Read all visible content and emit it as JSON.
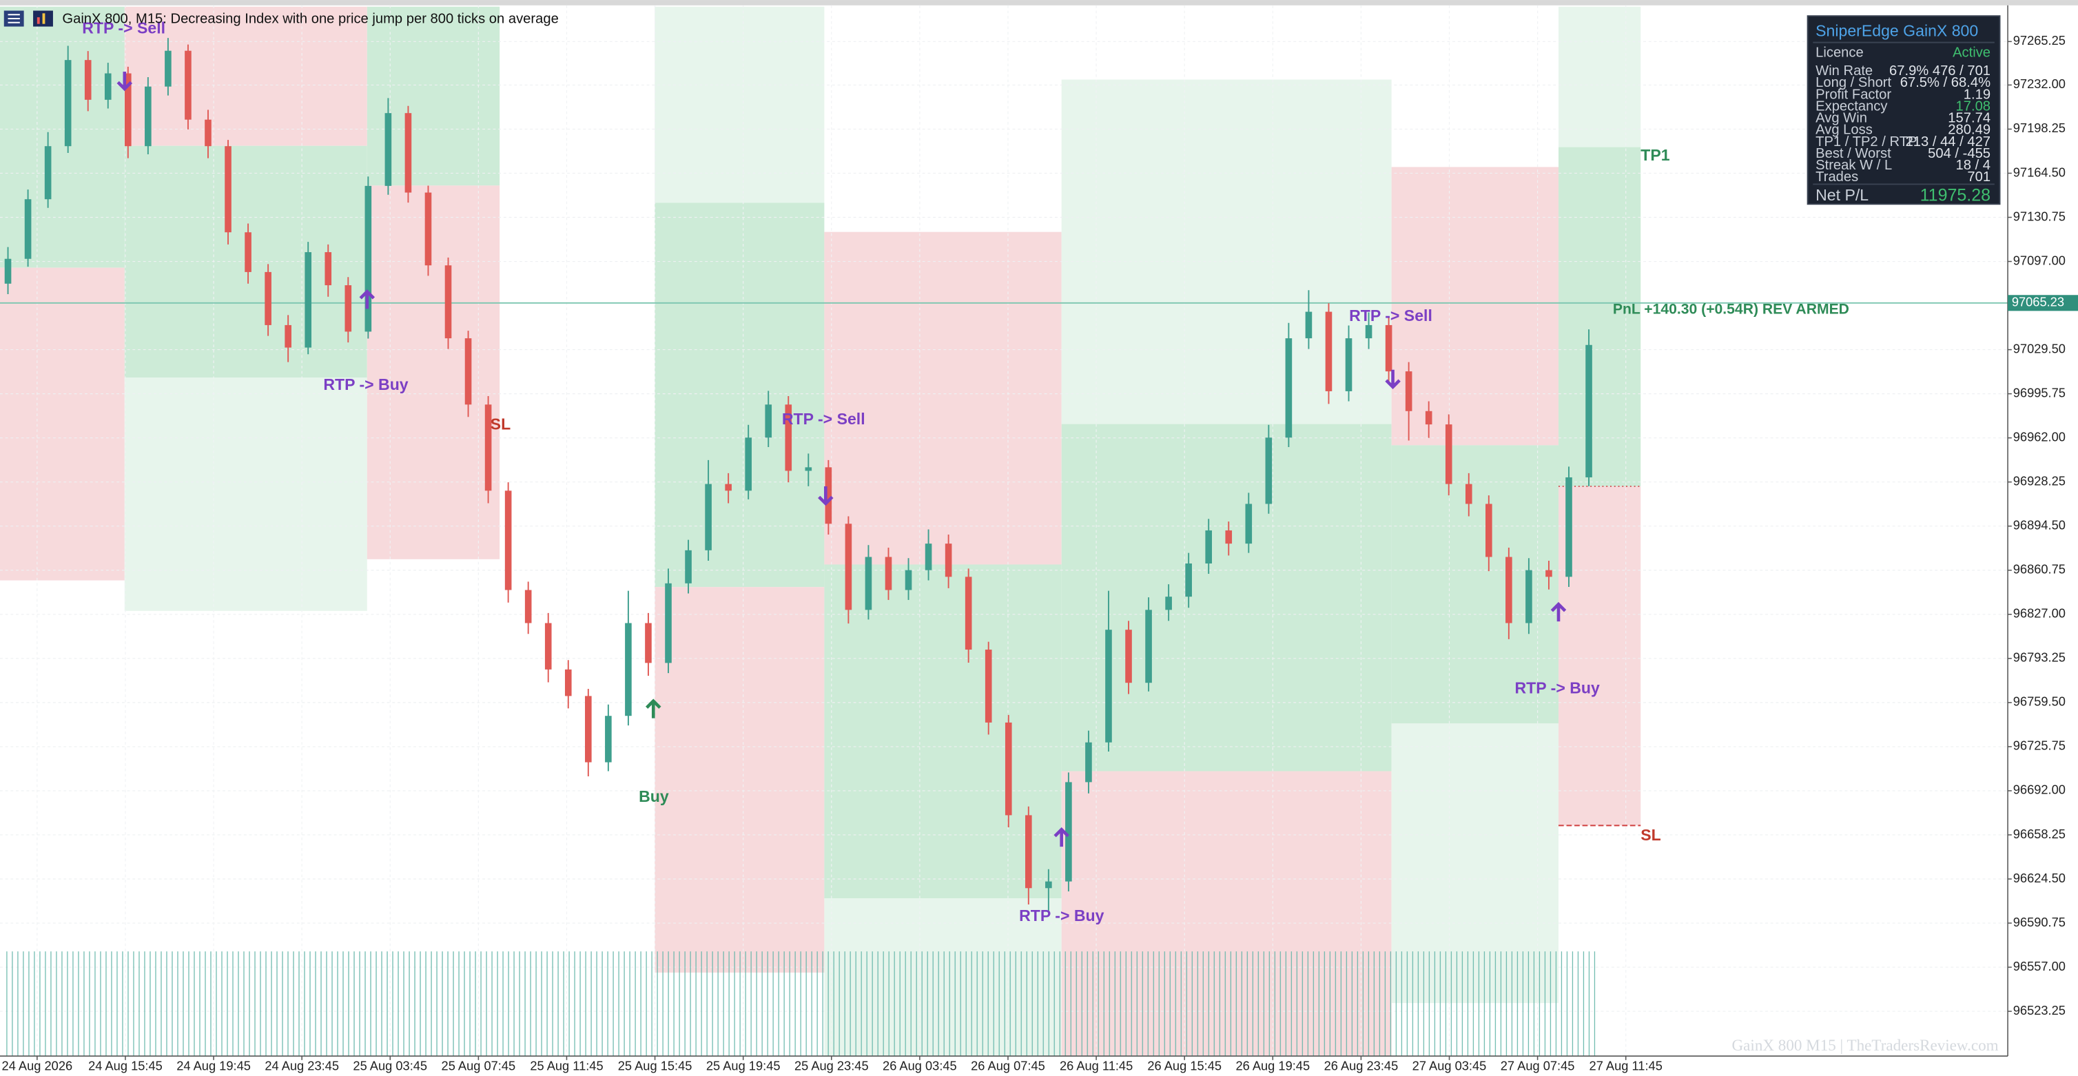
{
  "chart_data": {
    "type": "candlestick",
    "title": "GainX 800, M15:  Decreasing Index with one price jump per 800 ticks on average",
    "up_color": "#3e9f8e",
    "down_color": "#e05a55",
    "ylim": [
      96489,
      97297
    ],
    "yticks": [
      {
        "value": 97265.25,
        "label": "97265.25"
      },
      {
        "value": 97232,
        "label": "97232.00"
      },
      {
        "value": 97198.25,
        "label": "97198.25"
      },
      {
        "value": 97164.5,
        "label": "97164.50"
      },
      {
        "value": 97130.75,
        "label": "97130.75"
      },
      {
        "value": 97097,
        "label": "97097.00"
      },
      {
        "value": 97029.5,
        "label": "97029.50"
      },
      {
        "value": 96995.75,
        "label": "96995.75"
      },
      {
        "value": 96962,
        "label": "96962.00"
      },
      {
        "value": 96928.25,
        "label": "96928.25"
      },
      {
        "value": 96894.5,
        "label": "96894.50"
      },
      {
        "value": 96860.75,
        "label": "96860.75"
      },
      {
        "value": 96827,
        "label": "96827.00"
      },
      {
        "value": 96793.25,
        "label": "96793.25"
      },
      {
        "value": 96759.5,
        "label": "96759.50"
      },
      {
        "value": 96725.75,
        "label": "96725.75"
      },
      {
        "value": 96692,
        "label": "96692.00"
      },
      {
        "value": 96658.25,
        "label": "96658.25"
      },
      {
        "value": 96624.5,
        "label": "96624.50"
      },
      {
        "value": 96590.75,
        "label": "96590.75"
      },
      {
        "value": 96557,
        "label": "96557.00"
      },
      {
        "value": 96523.25,
        "label": "96523.25"
      }
    ],
    "grid": true,
    "time_labels": [
      "24 Aug 2026",
      "24 Aug 15:45",
      "24 Aug 19:45",
      "24 Aug 23:45",
      "25 Aug 03:45",
      "25 Aug 07:45",
      "25 Aug 11:45",
      "25 Aug 15:45",
      "25 Aug 19:45",
      "25 Aug 23:45",
      "26 Aug 03:45",
      "26 Aug 07:45",
      "26 Aug 11:45",
      "26 Aug 15:45",
      "26 Aug 19:45",
      "26 Aug 23:45",
      "27 Aug 03:45",
      "27 Aug 07:45",
      "27 Aug 11:45"
    ],
    "open": [
      97080,
      97099,
      97144.6,
      97185.2,
      97251.1,
      97220.7,
      97240.9,
      97185.2,
      97230.8,
      97258.2,
      97205.5,
      97185.2,
      97119.3,
      97088.9,
      97048.3,
      97031.1,
      97104.1,
      97078.8,
      97043.3,
      97154.8,
      97210.5,
      97149.7,
      97094,
      97038.2,
      96987.5,
      96921.6,
      96845.6,
      96820.3,
      96784.8,
      96764.5,
      96713.8,
      96749.3,
      96820.3,
      96789.8,
      96850.7,
      96876,
      96926.7,
      96921.6,
      96962.2,
      96987.5,
      96936.8,
      96939.5,
      96896.3,
      96830.4,
      96870.9,
      96845.6,
      96860.8,
      96881.1,
      96855.7,
      96800,
      96744.2,
      96673.3,
      96617.5,
      96622.6,
      96698.6,
      96729,
      96815.2,
      96774.6,
      96830.4,
      96840.5,
      96865.9,
      96891.2,
      96881.1,
      96911.5,
      96962.2,
      97038.2,
      97058.5,
      96997.7,
      97038.2,
      97048.3,
      97012.9,
      96982.5,
      96972.3,
      96926.7,
      96911.5,
      96870.9,
      96820.3,
      96860.8,
      96855.7,
      96931.8
    ],
    "high": [
      97108,
      97152,
      97196,
      97262,
      97258,
      97249,
      97246,
      97238,
      97268,
      97263,
      97213,
      97190,
      97126,
      97095,
      97056,
      97112,
      97110,
      97085,
      97162,
      97222,
      97216,
      97155,
      97100,
      97044,
      96994,
      96928,
      96852,
      96828,
      96792,
      96770,
      96758,
      96845,
      96828,
      96862,
      96884,
      96945,
      96935,
      96972,
      96998,
      96994,
      96950,
      96945,
      96902,
      96880,
      96878,
      96870,
      96892,
      96888,
      96862,
      96806,
      96750,
      96680,
      96632,
      96706,
      96738,
      96845,
      96822,
      96840,
      96850,
      96874,
      96900,
      96898,
      96920,
      96972,
      97050,
      97075,
      97065,
      97048,
      97058,
      97055,
      97020,
      96990,
      96980,
      96935,
      96918,
      96878,
      96870,
      96868,
      96940,
      97045
    ],
    "low": [
      97072,
      97093,
      97138,
      97180,
      97212,
      97214,
      97176,
      97179,
      97224,
      97198,
      97176,
      97110,
      97080,
      97040,
      97020,
      97026,
      97070,
      97035,
      97038,
      97148,
      97142,
      97086,
      97030,
      96978,
      96912,
      96836,
      96812,
      96775,
      96755,
      96703,
      96707,
      96742,
      96780,
      96782,
      96843,
      96868,
      96912,
      96915,
      96955,
      96928,
      96925,
      96888,
      96820,
      96823,
      96838,
      96838,
      96853,
      96847,
      96790,
      96735,
      96664,
      96605,
      96600,
      96615,
      96690,
      96722,
      96766,
      96768,
      96822,
      96832,
      96858,
      96872,
      96874,
      96904,
      96955,
      97030,
      96988,
      96990,
      97030,
      97004,
      96960,
      96962,
      96918,
      96902,
      96860,
      96808,
      96812,
      96846,
      96848,
      96925
    ],
    "close": [
      97099,
      97144.6,
      97185.2,
      97251.1,
      97220.7,
      97240.9,
      97185.2,
      97230.8,
      97258.2,
      97205.5,
      97185.2,
      97119.3,
      97088.9,
      97048.3,
      97031.1,
      97104.1,
      97078.8,
      97043.3,
      97154.8,
      97210.5,
      97149.7,
      97094,
      97038.2,
      96987.5,
      96921.6,
      96845.6,
      96820.3,
      96784.8,
      96764.5,
      96713.8,
      96749.3,
      96820.3,
      96789.8,
      96850.7,
      96876,
      96926.7,
      96921.6,
      96962.2,
      96987.5,
      96936.8,
      96939.5,
      96896.3,
      96830.4,
      96870.9,
      96845.6,
      96860.8,
      96881.1,
      96855.7,
      96800,
      96744.2,
      96673.3,
      96617.5,
      96622.6,
      96698.6,
      96729,
      96815.2,
      96774.6,
      96830.4,
      96840.5,
      96865.9,
      96891.2,
      96881.1,
      96911.5,
      96962.2,
      97038.2,
      97058.5,
      96997.7,
      97038.2,
      97048.3,
      97012.9,
      96982.5,
      96972.3,
      96926.7,
      96911.5,
      96870.9,
      96820.3,
      96860.8,
      96855.7,
      96931.8,
      97033.1
    ],
    "current_price": {
      "value": 97065.23,
      "label": "97065.23"
    },
    "annotations": [
      {
        "text": "RTP -> Sell",
        "color": "#7b3fc4"
      },
      {
        "text": "RTP -> Buy",
        "color": "#7b3fc4"
      },
      {
        "text": "SL",
        "color": "#c0392b"
      },
      {
        "text": "RTP -> Sell",
        "color": "#7b3fc4"
      },
      {
        "text": "Buy",
        "color": "#2e8b57"
      },
      {
        "text": "RTP -> Buy",
        "color": "#7b3fc4"
      },
      {
        "text": "RTP -> Sell",
        "color": "#7b3fc4"
      },
      {
        "text": "PnL +140.30  (+0.54R)   REV ARMED",
        "color": "#2e8b57"
      },
      {
        "text": "TP1",
        "color": "#2e8b57"
      },
      {
        "text": "RTP -> Buy",
        "color": "#7b3fc4"
      },
      {
        "text": "SL",
        "color": "#c0392b"
      }
    ],
    "info_panel": {
      "title": "SniperEdge GainX 800",
      "rows": [
        {
          "label": "Licence",
          "value": "Active",
          "color": "#3fbf6f"
        },
        {
          "label": "Win Rate",
          "value": "67.9%   476 / 701",
          "color": "#e0e4ea"
        },
        {
          "label": "Long / Short",
          "value": "67.5%  /  68.4%",
          "color": "#e0e4ea"
        },
        {
          "label": "Profit Factor",
          "value": "1.19",
          "color": "#e0e4ea"
        },
        {
          "label": "Expectancy",
          "value": "17.08",
          "color": "#3fbf6f"
        },
        {
          "label": "Avg Win",
          "value": "157.74",
          "color": "#e0e4ea"
        },
        {
          "label": "Avg Loss",
          "value": "280.49",
          "color": "#e0e4ea"
        },
        {
          "label": "TP1 / TP2 / RTP",
          "value": "213 / 44 / 427",
          "color": "#e0e4ea"
        },
        {
          "label": "Best / Worst",
          "value": "504 / -455",
          "color": "#e0e4ea"
        },
        {
          "label": "Streak W / L",
          "value": "18 / 4",
          "color": "#e0e4ea"
        },
        {
          "label": "Trades",
          "value": "701",
          "color": "#e0e4ea"
        }
      ],
      "net_label": "Net P/L",
      "net_value": "11975.28",
      "net_color": "#3fbf6f"
    },
    "watermark": "GainX 800    M15   |   TheTradersReview.com"
  }
}
